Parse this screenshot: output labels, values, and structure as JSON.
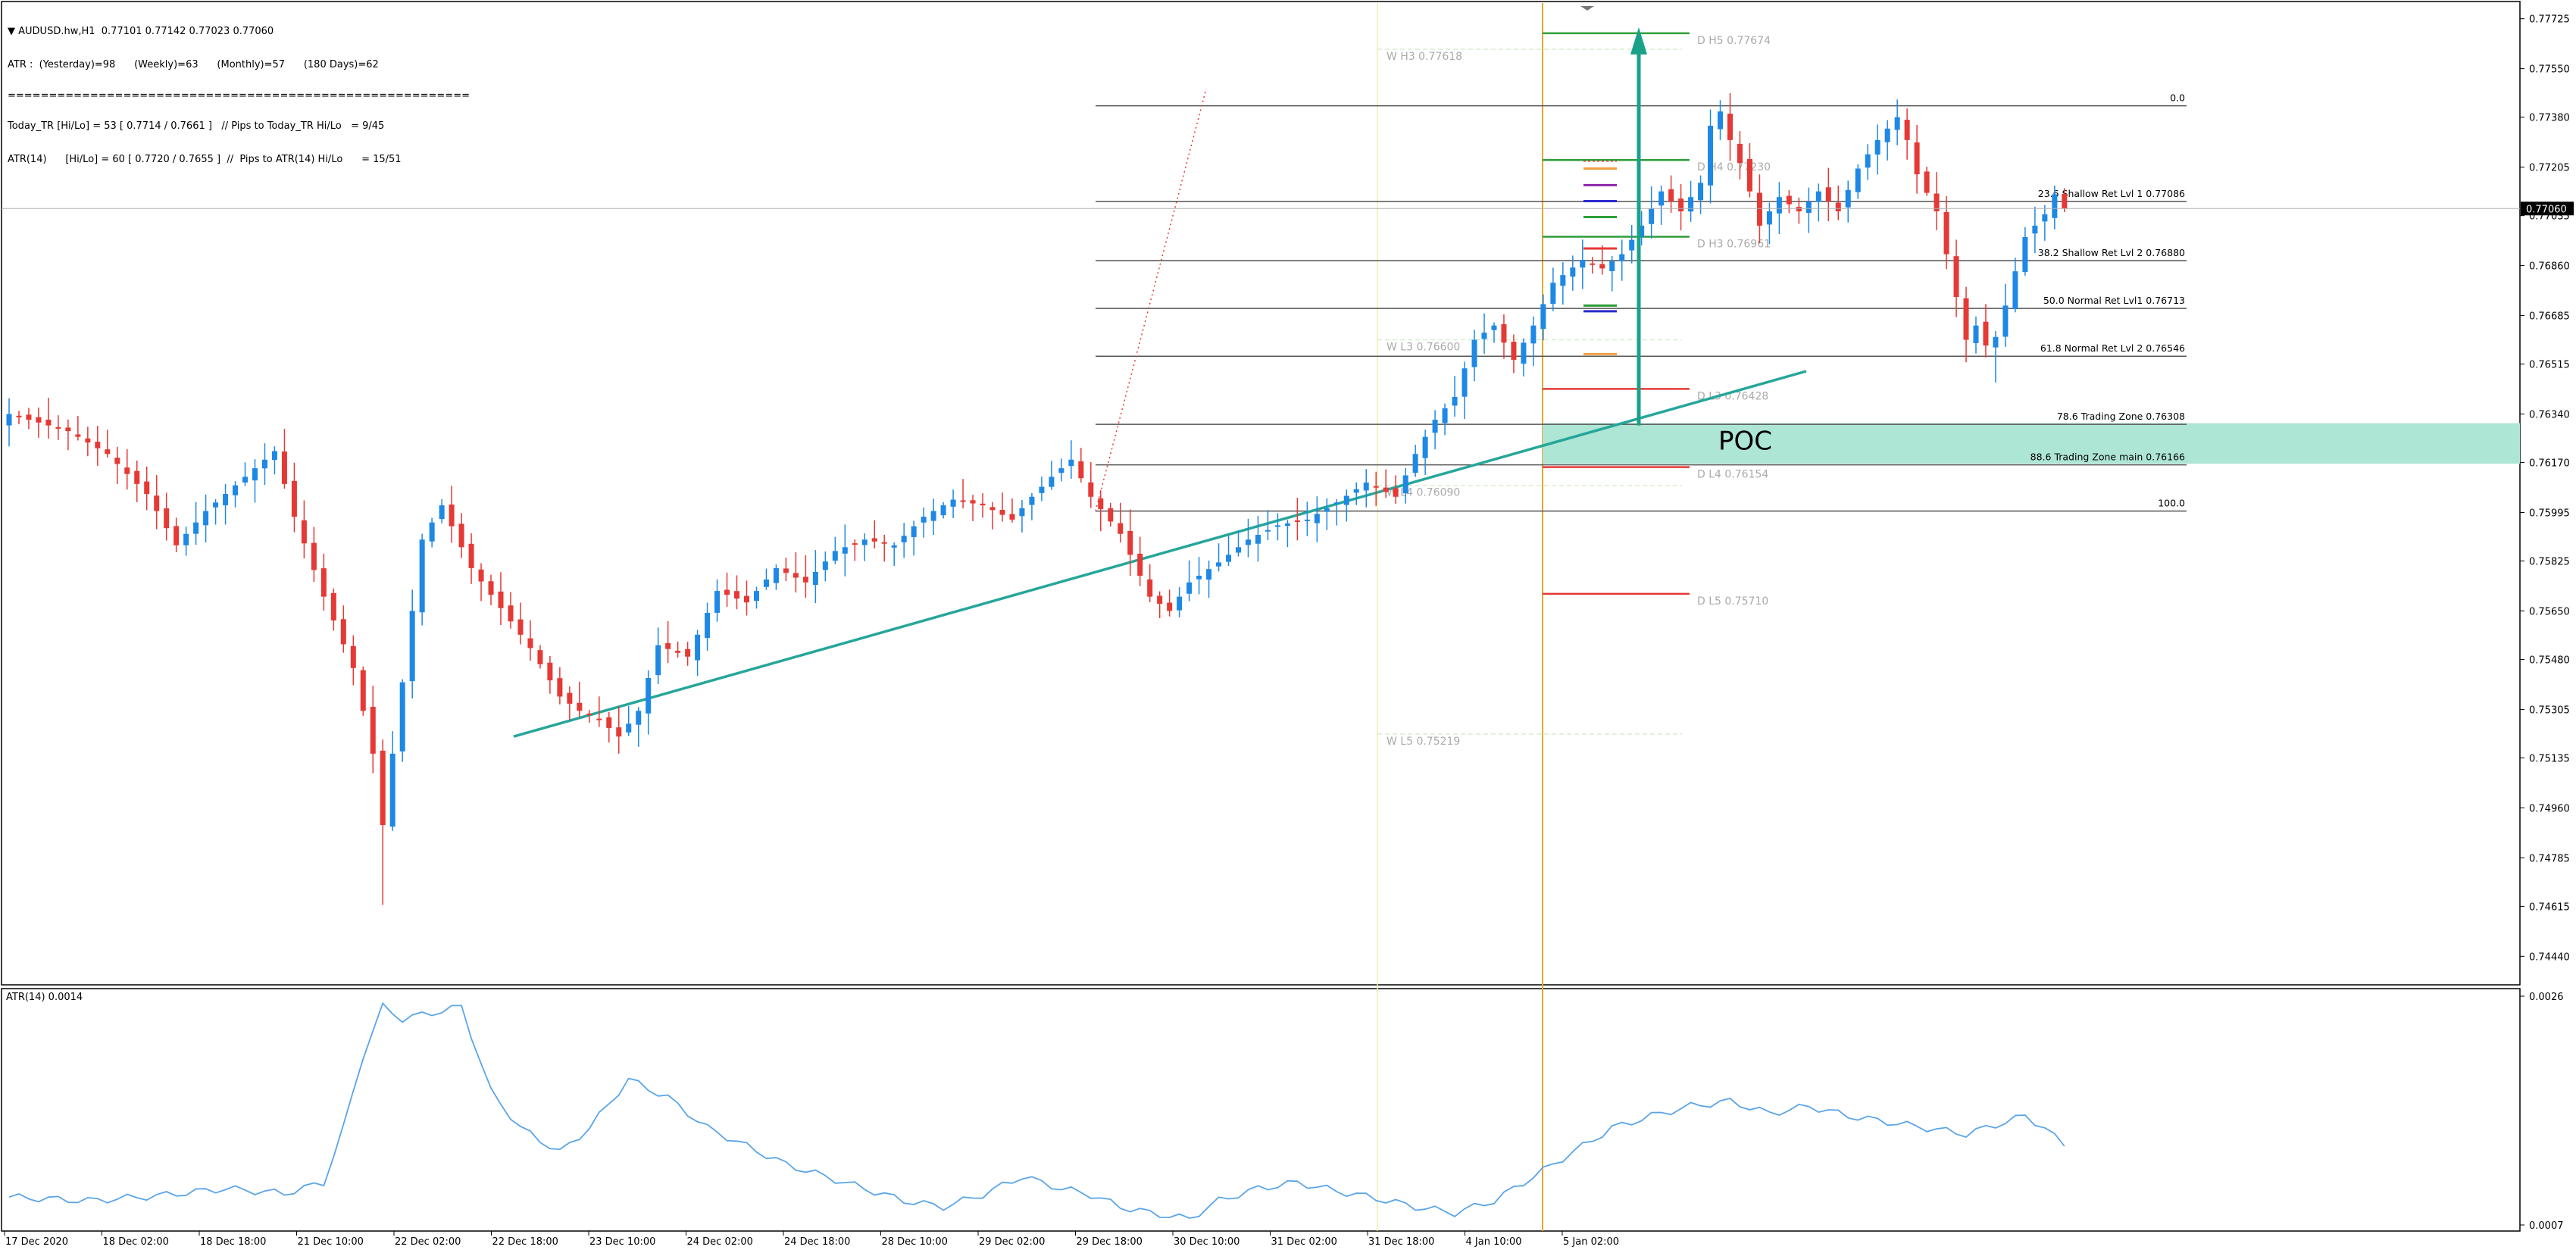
{
  "header": {
    "symbol_line": "▼ AUDUSD.hw,H1  0.77101 0.77142 0.77023 0.77060",
    "atr_line": "ATR :  (Yesterday)=98      (Weekly)=63      (Monthly)=57      (180 Days)=62",
    "separator": "========================================================",
    "today_line": "Today_TR [Hi/Lo] = 53 [ 0.7714 / 0.7661 ]   // Pips to Today_TR Hi/Lo   = 9/45",
    "atr14_line": "ATR(14)      [Hi/Lo] = 60 [ 0.7720 / 0.7655 ]  //  Pips to ATR(14) Hi/Lo      = 15/51"
  },
  "colors": {
    "bull": "#1e88e5",
    "bear": "#e53935",
    "fib_line": "#555555",
    "poc_zone": "#aee6d6",
    "trendline": "#26a69a",
    "arrow": "#1aa18a",
    "day_separator": "#e3a92b",
    "atr_line": "#5aa5e8",
    "level_green": "#2e9e3a",
    "level_red": "#e53935",
    "weekly_level": "#aaaaaa"
  },
  "current_price_label": "0.77060",
  "poc_label": "POC",
  "levels": [
    {
      "label": "W  H3 0.77618",
      "type": "weekly"
    },
    {
      "label": "D  H5 0.77674",
      "type": "daily-high"
    },
    {
      "label": "D  H4 0.77230",
      "type": "daily-high"
    },
    {
      "label": "D  H3 0.76961",
      "type": "daily-high"
    },
    {
      "label": "W  L3 0.76600",
      "type": "weekly"
    },
    {
      "label": "D  L3 0.76428",
      "type": "daily-low"
    },
    {
      "label": "D  L4 0.76154",
      "type": "daily-low"
    },
    {
      "label": "W  L4 0.76090",
      "type": "weekly"
    },
    {
      "label": "D  L5 0.75710",
      "type": "daily-low"
    },
    {
      "label": "W  L5 0.75219",
      "type": "weekly"
    }
  ],
  "fib_levels": [
    {
      "label": "0.0"
    },
    {
      "label": "23.6 Shallow Ret Lvl 1 0.77086"
    },
    {
      "label": "38.2 Shallow Ret Lvl 2 0.76880"
    },
    {
      "label": "50.0 Normal Ret Lvl1 0.76713"
    },
    {
      "label": "61.8 Normal Ret Lvl 2 0.76546"
    },
    {
      "label": "78.6 Trading Zone 0.76308"
    },
    {
      "label": "88.6 Trading Zone main 0.76166"
    },
    {
      "label": "100.0"
    }
  ],
  "indicator": {
    "label": "ATR(14) 0.0014",
    "ticks": [
      "0.0026",
      "0.0007"
    ]
  },
  "chart_data": {
    "type": "candlestick",
    "symbol": "AUDUSD.hw",
    "timeframe": "H1",
    "y_ticks": [
      "0.77725",
      "0.77550",
      "0.77380",
      "0.77205",
      "0.77035",
      "0.76860",
      "0.76685",
      "0.76515",
      "0.76340",
      "0.76170",
      "0.75995",
      "0.75825",
      "0.75650",
      "0.75480",
      "0.75305",
      "0.75135",
      "0.74960",
      "0.74785",
      "0.74615",
      "0.74440"
    ],
    "ylim": [
      0.7434,
      0.7778
    ],
    "x_ticks": [
      "17 Dec 2020",
      "18 Dec 02:00",
      "18 Dec 18:00",
      "21 Dec 10:00",
      "22 Dec 02:00",
      "22 Dec 18:00",
      "23 Dec 10:00",
      "24 Dec 02:00",
      "24 Dec 18:00",
      "28 Dec 10:00",
      "29 Dec 02:00",
      "29 Dec 18:00",
      "30 Dec 10:00",
      "31 Dec 02:00",
      "31 Dec 18:00",
      "4 Jan 10:00",
      "5 Jan 02:00"
    ],
    "last_price": 0.7706,
    "close_path": [
      [
        0,
        0.7634
      ],
      [
        6,
        0.7628
      ],
      [
        10,
        0.762
      ],
      [
        14,
        0.7606
      ],
      [
        17,
        0.7588
      ],
      [
        20,
        0.76
      ],
      [
        24,
        0.7612
      ],
      [
        27,
        0.7621
      ],
      [
        29,
        0.7598
      ],
      [
        32,
        0.757
      ],
      [
        35,
        0.7545
      ],
      [
        37,
        0.7515
      ],
      [
        38,
        0.749
      ],
      [
        40,
        0.754
      ],
      [
        42,
        0.759
      ],
      [
        44,
        0.7602
      ],
      [
        47,
        0.758
      ],
      [
        50,
        0.7566
      ],
      [
        53,
        0.7552
      ],
      [
        56,
        0.7535
      ],
      [
        58,
        0.753
      ],
      [
        60,
        0.7527
      ],
      [
        62,
        0.7521
      ],
      [
        64,
        0.753
      ],
      [
        66,
        0.7553
      ],
      [
        69,
        0.7549
      ],
      [
        72,
        0.7572
      ],
      [
        75,
        0.7568
      ],
      [
        78,
        0.758
      ],
      [
        81,
        0.7575
      ],
      [
        84,
        0.7586
      ],
      [
        87,
        0.759
      ],
      [
        90,
        0.7588
      ],
      [
        93,
        0.7598
      ],
      [
        96,
        0.7604
      ],
      [
        99,
        0.7602
      ],
      [
        102,
        0.7597
      ],
      [
        104,
        0.7605
      ],
      [
        106,
        0.7612
      ],
      [
        108,
        0.7618
      ],
      [
        110,
        0.7605
      ],
      [
        113,
        0.7592
      ],
      [
        116,
        0.757
      ],
      [
        118,
        0.7565
      ],
      [
        120,
        0.7575
      ],
      [
        123,
        0.7582
      ],
      [
        126,
        0.759
      ],
      [
        129,
        0.7595
      ],
      [
        132,
        0.7597
      ],
      [
        135,
        0.7603
      ],
      [
        138,
        0.761
      ],
      [
        141,
        0.7605
      ],
      [
        143,
        0.762
      ],
      [
        145,
        0.7632
      ],
      [
        147,
        0.764
      ],
      [
        149,
        0.766
      ],
      [
        151,
        0.7665
      ],
      [
        153,
        0.7653
      ],
      [
        155,
        0.7665
      ],
      [
        157,
        0.768
      ],
      [
        160,
        0.7688
      ],
      [
        162,
        0.7685
      ],
      [
        164,
        0.769
      ],
      [
        166,
        0.77
      ],
      [
        168,
        0.7712
      ],
      [
        170,
        0.7705
      ],
      [
        172,
        0.7715
      ],
      [
        173,
        0.7735
      ],
      [
        174,
        0.774
      ],
      [
        175,
        0.773
      ],
      [
        176,
        0.7722
      ],
      [
        177,
        0.7712
      ],
      [
        178,
        0.77
      ],
      [
        180,
        0.771
      ],
      [
        182,
        0.7705
      ],
      [
        184,
        0.7712
      ],
      [
        186,
        0.7705
      ],
      [
        188,
        0.772
      ],
      [
        190,
        0.773
      ],
      [
        192,
        0.7738
      ],
      [
        193,
        0.773
      ],
      [
        194,
        0.7718
      ],
      [
        196,
        0.7705
      ],
      [
        197,
        0.769
      ],
      [
        198,
        0.7675
      ],
      [
        199,
        0.766
      ],
      [
        200,
        0.7665
      ],
      [
        201,
        0.7658
      ],
      [
        202,
        0.7661
      ],
      [
        203,
        0.7672
      ],
      [
        204,
        0.7684
      ],
      [
        205,
        0.7696
      ],
      [
        207,
        0.7704
      ],
      [
        208,
        0.7711
      ],
      [
        209,
        0.7706
      ]
    ],
    "fib_retracement": {
      "high": 0.7742,
      "low": 0.76
    },
    "poc_zone": [
      0.76166,
      0.76308
    ],
    "separators": [
      "31 Dec 18:00",
      "5 Jan 02:00"
    ],
    "atr_indicator": {
      "name": "ATR(14)",
      "last": 0.0014,
      "ylim": [
        0.0007,
        0.0026
      ],
      "path": [
        [
          0,
          0.00093
        ],
        [
          8,
          0.0009
        ],
        [
          15,
          0.00094
        ],
        [
          22,
          0.001
        ],
        [
          28,
          0.00096
        ],
        [
          32,
          0.00105
        ],
        [
          34,
          0.0015
        ],
        [
          36,
          0.0021
        ],
        [
          38,
          0.0025
        ],
        [
          40,
          0.0024
        ],
        [
          43,
          0.00245
        ],
        [
          46,
          0.0025
        ],
        [
          49,
          0.0018
        ],
        [
          52,
          0.0015
        ],
        [
          56,
          0.0013
        ],
        [
          59,
          0.0015
        ],
        [
          63,
          0.0019
        ],
        [
          67,
          0.00175
        ],
        [
          71,
          0.0015
        ],
        [
          75,
          0.00135
        ],
        [
          79,
          0.0012
        ],
        [
          83,
          0.0011
        ],
        [
          87,
          0.001
        ],
        [
          91,
          0.0009
        ],
        [
          95,
          0.00085
        ],
        [
          99,
          0.00095
        ],
        [
          103,
          0.0011
        ],
        [
          107,
          0.001
        ],
        [
          110,
          0.00095
        ],
        [
          113,
          0.00085
        ],
        [
          116,
          0.0008
        ],
        [
          120,
          0.00075
        ],
        [
          123,
          0.0009
        ],
        [
          127,
          0.001
        ],
        [
          131,
          0.00105
        ],
        [
          135,
          0.00098
        ],
        [
          139,
          0.00092
        ],
        [
          143,
          0.00085
        ],
        [
          147,
          0.0008
        ],
        [
          151,
          0.0009
        ],
        [
          155,
          0.0011
        ],
        [
          159,
          0.0013
        ],
        [
          163,
          0.0015
        ],
        [
          167,
          0.0016
        ],
        [
          171,
          0.00168
        ],
        [
          175,
          0.00172
        ],
        [
          179,
          0.00162
        ],
        [
          183,
          0.00168
        ],
        [
          187,
          0.0016
        ],
        [
          191,
          0.00155
        ],
        [
          195,
          0.0015
        ],
        [
          199,
          0.00145
        ],
        [
          203,
          0.00155
        ],
        [
          205,
          0.0016
        ],
        [
          207,
          0.0015
        ],
        [
          209,
          0.00135
        ]
      ]
    }
  }
}
